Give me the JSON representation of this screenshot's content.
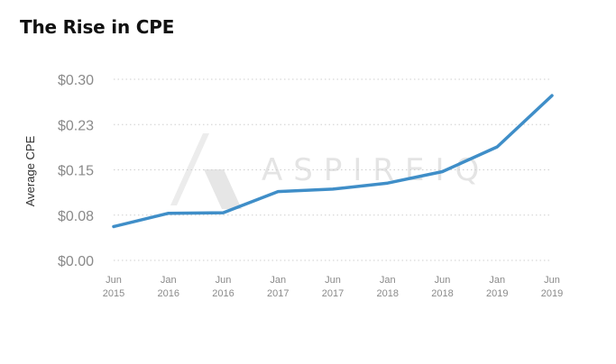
{
  "chart_data": {
    "type": "line",
    "title": "The Rise in CPE",
    "ylabel": "Average CPE",
    "xlabel": "",
    "watermark": "ASPIREIQ",
    "grid": true,
    "ylim": [
      0,
      0.3
    ],
    "y_ticks": [
      {
        "value": 0.3,
        "label": "$0.30"
      },
      {
        "value": 0.225,
        "label": "$0.23"
      },
      {
        "value": 0.15,
        "label": "$0.15"
      },
      {
        "value": 0.075,
        "label": "$0.08"
      },
      {
        "value": 0.0,
        "label": "$0.00"
      }
    ],
    "categories": [
      [
        "Jun",
        "2015"
      ],
      [
        "Jan",
        "2016"
      ],
      [
        "Jun",
        "2016"
      ],
      [
        "Jan",
        "2017"
      ],
      [
        "Jun",
        "2017"
      ],
      [
        "Jan",
        "2018"
      ],
      [
        "Jun",
        "2018"
      ],
      [
        "Jan",
        "2019"
      ],
      [
        "Jun",
        "2019"
      ]
    ],
    "series": [
      {
        "values": [
          0.056,
          0.078,
          0.079,
          0.114,
          0.118,
          0.128,
          0.147,
          0.188,
          0.273
        ]
      }
    ],
    "line_color": "#3f8ec8"
  }
}
